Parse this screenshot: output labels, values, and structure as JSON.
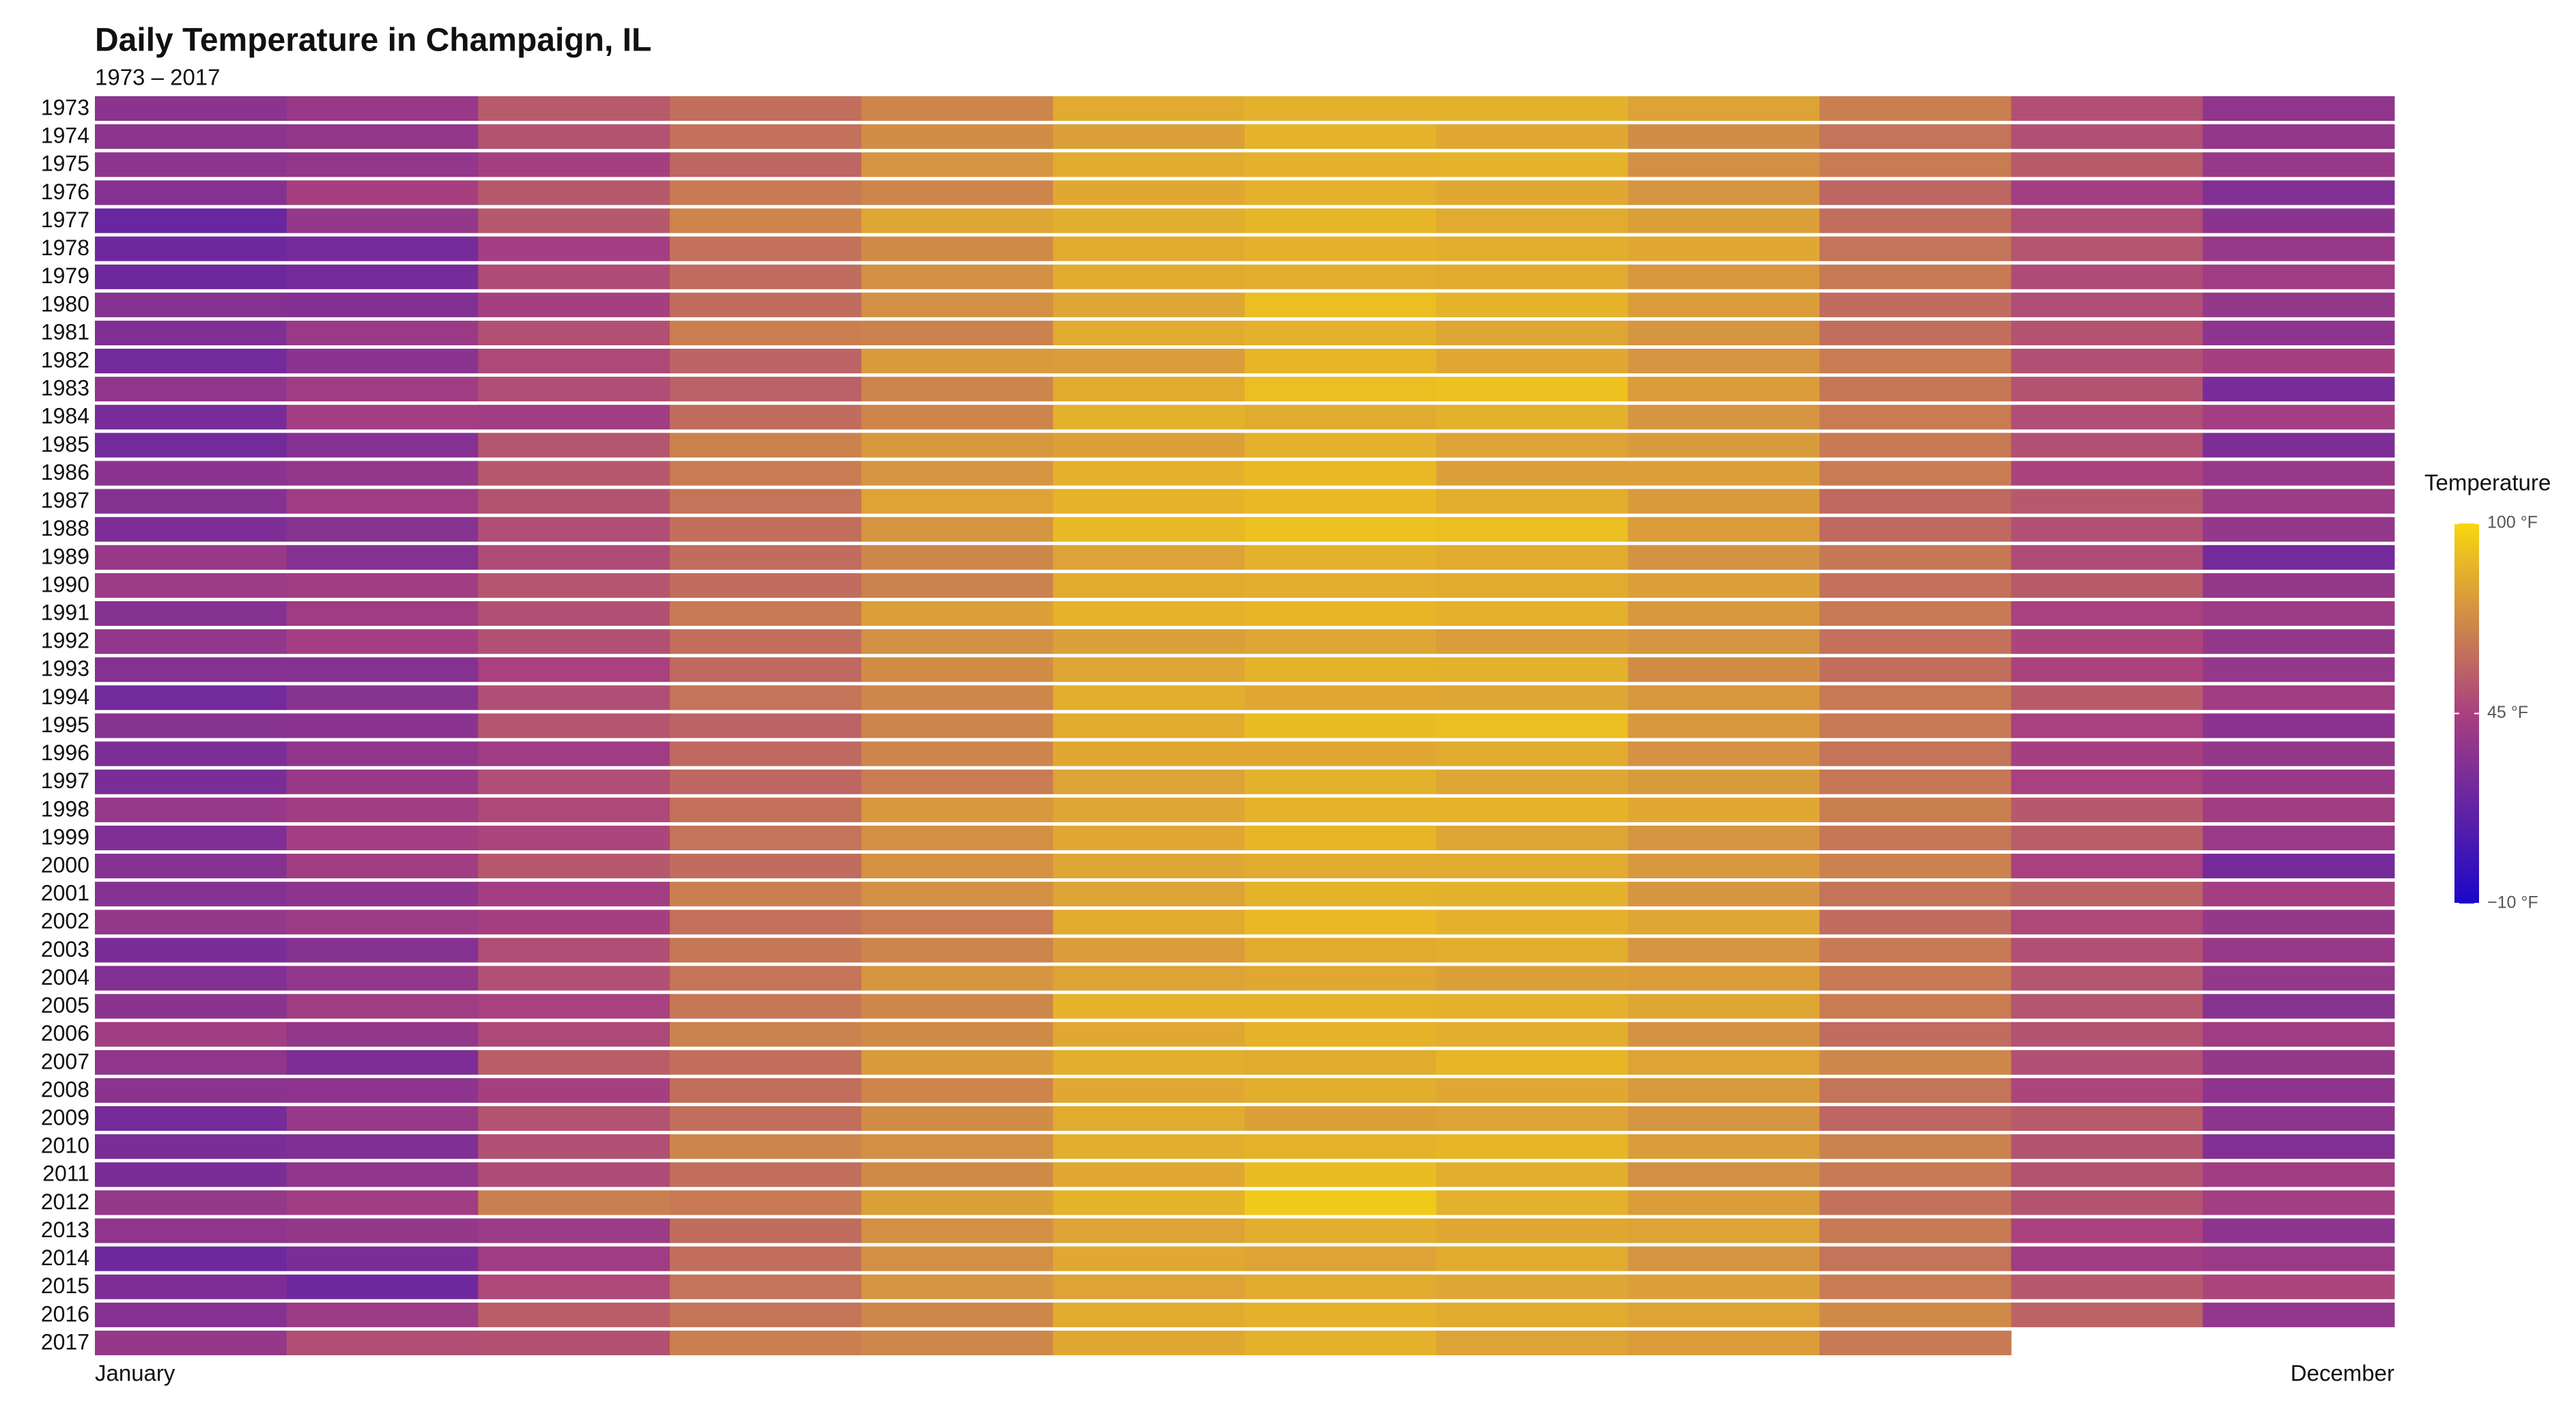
{
  "chart_data": {
    "type": "heatmap",
    "title": "Daily Temperature in Champaign, IL",
    "subtitle": "1973 – 2017",
    "legend_title": "Temperature",
    "categories": [
      "January",
      null,
      null,
      null,
      null,
      null,
      null,
      null,
      null,
      null,
      null,
      "December"
    ],
    "years": [
      1973,
      1974,
      1975,
      1976,
      1977,
      1978,
      1979,
      1980,
      1981,
      1982,
      1983,
      1984,
      1985,
      1986,
      1987,
      1988,
      1989,
      1990,
      1991,
      1992,
      1993,
      1994,
      1995,
      1996,
      1997,
      1998,
      1999,
      2000,
      2001,
      2002,
      2003,
      2004,
      2005,
      2006,
      2007,
      2008,
      2009,
      2010,
      2011,
      2012,
      2013,
      2014,
      2015,
      2016,
      2017
    ],
    "values": [
      [
        33,
        38,
        55,
        62,
        70,
        84,
        86,
        86,
        81,
        68,
        51,
        35
      ],
      [
        34,
        36,
        52,
        63,
        73,
        80,
        87,
        83,
        73,
        64,
        51,
        36
      ],
      [
        34,
        36,
        44,
        59,
        76,
        84,
        86,
        87,
        74,
        67,
        55,
        38
      ],
      [
        31,
        44,
        54,
        66,
        70,
        83,
        86,
        83,
        76,
        59,
        43,
        30
      ],
      [
        20,
        37,
        54,
        70,
        82,
        85,
        88,
        84,
        80,
        62,
        50,
        33
      ],
      [
        22,
        25,
        43,
        63,
        72,
        84,
        86,
        85,
        83,
        64,
        53,
        38
      ],
      [
        22,
        25,
        49,
        61,
        74,
        84,
        85,
        84,
        77,
        66,
        49,
        41
      ],
      [
        31,
        30,
        44,
        61,
        74,
        82,
        91,
        87,
        79,
        61,
        50,
        37
      ],
      [
        29,
        39,
        51,
        68,
        69,
        84,
        86,
        82,
        76,
        62,
        52,
        34
      ],
      [
        24,
        33,
        48,
        58,
        78,
        79,
        88,
        83,
        76,
        67,
        51,
        44
      ],
      [
        35,
        41,
        50,
        57,
        70,
        84,
        91,
        92,
        79,
        65,
        52,
        26
      ],
      [
        26,
        43,
        42,
        61,
        70,
        86,
        84,
        86,
        76,
        67,
        50,
        43
      ],
      [
        24,
        31,
        53,
        69,
        77,
        80,
        86,
        81,
        78,
        66,
        51,
        28
      ],
      [
        33,
        36,
        54,
        67,
        76,
        86,
        89,
        80,
        80,
        67,
        46,
        38
      ],
      [
        31,
        41,
        52,
        64,
        81,
        87,
        89,
        85,
        78,
        60,
        54,
        40
      ],
      [
        28,
        32,
        50,
        62,
        76,
        89,
        92,
        91,
        79,
        60,
        51,
        37
      ],
      [
        38,
        31,
        49,
        61,
        71,
        81,
        86,
        84,
        75,
        65,
        49,
        24
      ],
      [
        40,
        42,
        53,
        61,
        69,
        84,
        85,
        84,
        80,
        63,
        55,
        37
      ],
      [
        31,
        41,
        51,
        66,
        80,
        87,
        88,
        86,
        77,
        66,
        45,
        40
      ],
      [
        36,
        43,
        51,
        62,
        74,
        80,
        82,
        79,
        76,
        63,
        47,
        37
      ],
      [
        31,
        31,
        45,
        60,
        73,
        82,
        87,
        86,
        73,
        62,
        46,
        37
      ],
      [
        24,
        32,
        50,
        64,
        71,
        85,
        83,
        82,
        77,
        66,
        55,
        42
      ],
      [
        32,
        33,
        53,
        58,
        70,
        84,
        90,
        91,
        77,
        66,
        45,
        33
      ],
      [
        28,
        35,
        41,
        60,
        70,
        83,
        83,
        84,
        75,
        64,
        44,
        37
      ],
      [
        27,
        38,
        50,
        59,
        67,
        81,
        86,
        82,
        78,
        65,
        45,
        38
      ],
      [
        38,
        42,
        48,
        63,
        77,
        82,
        87,
        87,
        83,
        68,
        54,
        42
      ],
      [
        29,
        43,
        47,
        64,
        74,
        83,
        88,
        82,
        76,
        65,
        56,
        39
      ],
      [
        31,
        42,
        54,
        61,
        75,
        82,
        84,
        84,
        77,
        69,
        45,
        25
      ],
      [
        31,
        34,
        43,
        68,
        74,
        81,
        87,
        86,
        76,
        64,
        58,
        43
      ],
      [
        37,
        40,
        44,
        63,
        67,
        84,
        89,
        86,
        82,
        61,
        48,
        37
      ],
      [
        27,
        31,
        50,
        65,
        70,
        79,
        84,
        85,
        76,
        66,
        51,
        38
      ],
      [
        30,
        36,
        51,
        64,
        76,
        81,
        83,
        80,
        79,
        66,
        53,
        37
      ],
      [
        33,
        41,
        45,
        65,
        71,
        87,
        87,
        86,
        82,
        67,
        53,
        32
      ],
      [
        42,
        36,
        48,
        69,
        72,
        83,
        87,
        85,
        75,
        61,
        52,
        41
      ],
      [
        35,
        28,
        56,
        62,
        78,
        85,
        84,
        88,
        81,
        71,
        51,
        37
      ],
      [
        33,
        34,
        44,
        62,
        70,
        83,
        85,
        83,
        78,
        64,
        47,
        34
      ],
      [
        25,
        38,
        52,
        62,
        73,
        84,
        80,
        81,
        76,
        59,
        55,
        34
      ],
      [
        27,
        29,
        51,
        70,
        74,
        85,
        87,
        88,
        79,
        69,
        52,
        30
      ],
      [
        27,
        35,
        49,
        62,
        72,
        83,
        90,
        85,
        74,
        66,
        52,
        42
      ],
      [
        37,
        42,
        68,
        66,
        80,
        87,
        95,
        86,
        79,
        63,
        52,
        43
      ],
      [
        35,
        37,
        40,
        61,
        74,
        81,
        85,
        83,
        81,
        66,
        46,
        34
      ],
      [
        22,
        27,
        41,
        62,
        74,
        83,
        81,
        84,
        76,
        64,
        42,
        39
      ],
      [
        28,
        22,
        48,
        64,
        76,
        81,
        84,
        82,
        80,
        67,
        54,
        47
      ],
      [
        31,
        40,
        56,
        64,
        71,
        84,
        86,
        84,
        81,
        72,
        58,
        36
      ],
      [
        37,
        50,
        51,
        68,
        71,
        83,
        86,
        81,
        79,
        66,
        null,
        null
      ]
    ],
    "colorscale": [
      "#1b07c9",
      "#a9407f",
      "#f8d70f"
    ],
    "clim": [
      -10,
      100
    ],
    "cticks": [
      {
        "value": -10,
        "label": "−10 °F"
      },
      {
        "value": 45,
        "label": "45 °F"
      },
      {
        "value": 100,
        "label": "100 °F"
      }
    ]
  }
}
